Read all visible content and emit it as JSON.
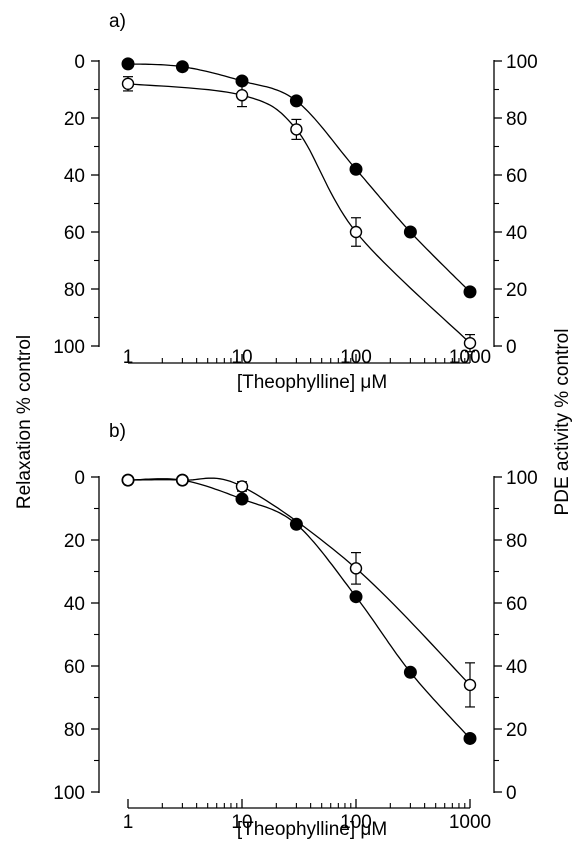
{
  "left_axis_label": "Relaxation  % control",
  "right_axis_label": "PDE activity  % control",
  "chart_data": [
    {
      "type": "scatter",
      "panel_label": "a)",
      "xlabel": "[Theophylline]  μM",
      "xscale": "log",
      "xlim": [
        1,
        1000
      ],
      "x_ticks": [
        1,
        10,
        100,
        1000
      ],
      "y_left": {
        "ylim": [
          0,
          100
        ],
        "inverted": true,
        "ticks": [
          0,
          20,
          40,
          60,
          80,
          100
        ]
      },
      "y_right": {
        "ylim": [
          0,
          100
        ],
        "ticks": [
          100,
          80,
          60,
          40,
          20,
          0
        ]
      },
      "series": [
        {
          "marker": "filled-circle",
          "x": [
            1,
            3,
            10,
            30,
            100,
            300,
            1000
          ],
          "y": [
            1,
            2,
            7,
            14,
            38,
            60,
            81
          ],
          "err": [
            0,
            0,
            0,
            0,
            0,
            0,
            0
          ]
        },
        {
          "marker": "open-circle",
          "x": [
            1,
            10,
            30,
            100,
            1000
          ],
          "y": [
            8,
            12,
            24,
            60,
            99
          ],
          "err": [
            2.5,
            4,
            3.5,
            5,
            3
          ]
        }
      ]
    },
    {
      "type": "scatter",
      "panel_label": "b)",
      "xlabel": "[Theophylline]  μM",
      "xscale": "log",
      "xlim": [
        1,
        1000
      ],
      "x_ticks": [
        1,
        10,
        100,
        1000
      ],
      "y_left": {
        "ylim": [
          0,
          100
        ],
        "inverted": true,
        "ticks": [
          0,
          20,
          40,
          60,
          80,
          100
        ]
      },
      "y_right": {
        "ylim": [
          0,
          100
        ],
        "ticks": [
          100,
          80,
          60,
          40,
          20,
          0
        ]
      },
      "series": [
        {
          "marker": "filled-circle",
          "x": [
            1,
            3,
            10,
            30,
            100,
            300,
            1000
          ],
          "y": [
            1,
            1,
            7,
            15,
            38,
            62,
            83
          ],
          "err": [
            0,
            0,
            0,
            0,
            0,
            0,
            0
          ]
        },
        {
          "marker": "open-circle",
          "x": [
            1,
            3,
            10,
            100,
            1000
          ],
          "y": [
            1,
            1,
            3,
            29,
            66
          ],
          "err": [
            0,
            0,
            1.5,
            5,
            7
          ]
        }
      ]
    }
  ]
}
